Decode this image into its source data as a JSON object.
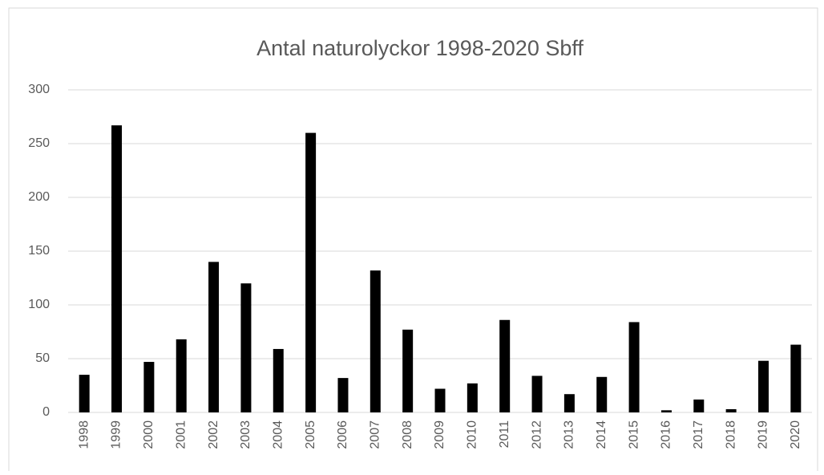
{
  "chart_data": {
    "type": "bar",
    "title": "Antal naturolyckor 1998-2020 Sbff",
    "categories": [
      "1998",
      "1999",
      "2000",
      "2001",
      "2002",
      "2003",
      "2004",
      "2005",
      "2006",
      "2007",
      "2008",
      "2009",
      "2010",
      "2011",
      "2012",
      "2013",
      "2014",
      "2015",
      "2016",
      "2017",
      "2018",
      "2019",
      "2020"
    ],
    "values": [
      35,
      267,
      47,
      68,
      140,
      120,
      59,
      260,
      32,
      132,
      77,
      22,
      27,
      86,
      34,
      17,
      33,
      84,
      2,
      12,
      3,
      48,
      63
    ],
    "color": "#000000",
    "ylim": [
      0,
      300
    ],
    "yticks": [
      0,
      50,
      100,
      150,
      200,
      250,
      300
    ],
    "grid": true
  }
}
